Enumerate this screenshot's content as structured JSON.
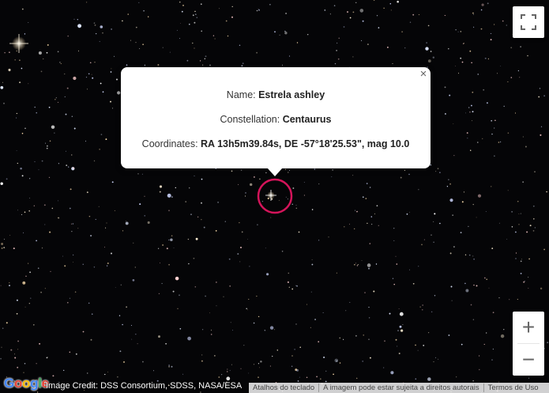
{
  "marker": {
    "ring_color": "#d4145a"
  },
  "info_window": {
    "name_label": "Name: ",
    "name_value": "Estrela ashley",
    "constellation_label": "Constellation: ",
    "constellation_value": "Centaurus",
    "coordinates_label": "Coordinates: ",
    "coordinates_value": "RA 13h5m39.84s, DE -57°18'25.53\", mag 10.0",
    "close_glyph": "×"
  },
  "controls": {
    "fullscreen_icon": "fullscreen-icon",
    "zoom_in_glyph": "+",
    "zoom_out_glyph": "−"
  },
  "attribution": {
    "logo_letters": [
      "G",
      "o",
      "o",
      "g",
      "l",
      "e"
    ],
    "logo_colors": [
      "#4285f4",
      "#ea4335",
      "#fbbc05",
      "#4285f4",
      "#34a853",
      "#ea4335"
    ],
    "image_credit": "Image Credit: DSS Consortium, SDSS, NASA/ESA"
  },
  "footer": {
    "keyboard_shortcuts": "Atalhos do teclado",
    "copyright_notice": "A imagem pode estar sujeita a direitos autorais",
    "terms": "Termos de Uso"
  }
}
